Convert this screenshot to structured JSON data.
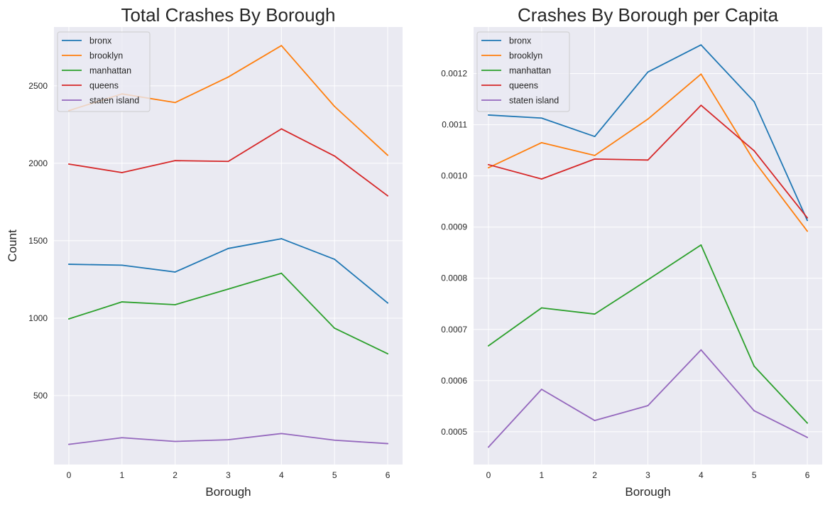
{
  "chart_data": [
    {
      "type": "line",
      "title": "Total Crashes By Borough",
      "xlabel": "Borough",
      "ylabel": "Count",
      "x": [
        0,
        1,
        2,
        3,
        4,
        5,
        6
      ],
      "xticks": [
        "0",
        "1",
        "2",
        "3",
        "4",
        "5",
        "6"
      ],
      "xlim": [
        -0.28,
        6.28
      ],
      "ylim": [
        55,
        2880
      ],
      "yticks": [
        500,
        1000,
        1500,
        2000,
        2500
      ],
      "yticklabels": [
        "500",
        "1000",
        "1500",
        "2000",
        "2500"
      ],
      "grid": true,
      "legend": "top-left",
      "series": [
        {
          "name": "bronx",
          "color": "#1f77b4",
          "values": [
            1348,
            1342,
            1298,
            1450,
            1513,
            1380,
            1098
          ]
        },
        {
          "name": "brooklyn",
          "color": "#ff7f0e",
          "values": [
            2340,
            2448,
            2392,
            2557,
            2760,
            2367,
            2052
          ]
        },
        {
          "name": "manhattan",
          "color": "#2ca02c",
          "values": [
            995,
            1105,
            1087,
            1188,
            1290,
            935,
            770
          ]
        },
        {
          "name": "queens",
          "color": "#d62728",
          "values": [
            1995,
            1940,
            2017,
            2012,
            2222,
            2047,
            1790
          ]
        },
        {
          "name": "staten island",
          "color": "#9467bd",
          "values": [
            185,
            228,
            204,
            215,
            255,
            212,
            190
          ]
        }
      ]
    },
    {
      "type": "line",
      "title": "Crashes By Borough per Capita",
      "xlabel": "Borough",
      "ylabel": "",
      "x": [
        0,
        1,
        2,
        3,
        4,
        5,
        6
      ],
      "xticks": [
        "0",
        "1",
        "2",
        "3",
        "4",
        "5",
        "6"
      ],
      "xlim": [
        -0.28,
        6.28
      ],
      "ylim": [
        0.000436,
        0.001291
      ],
      "yticks": [
        0.0005,
        0.0006,
        0.0007,
        0.0008,
        0.0009,
        0.001,
        0.0011,
        0.0012
      ],
      "yticklabels": [
        "0.0005",
        "0.0006",
        "0.0007",
        "0.0008",
        "0.0009",
        "0.0010",
        "0.0011",
        "0.0012"
      ],
      "grid": true,
      "legend": "top-left",
      "series": [
        {
          "name": "bronx",
          "color": "#1f77b4",
          "values": [
            0.001119,
            0.001113,
            0.001077,
            0.001203,
            0.001256,
            0.001145,
            0.000913
          ]
        },
        {
          "name": "brooklyn",
          "color": "#ff7f0e",
          "values": [
            0.001016,
            0.001065,
            0.00104,
            0.001111,
            0.001199,
            0.001029,
            0.000892
          ]
        },
        {
          "name": "manhattan",
          "color": "#2ca02c",
          "values": [
            0.000668,
            0.000742,
            0.00073,
            0.000797,
            0.000865,
            0.000628,
            0.000517
          ]
        },
        {
          "name": "queens",
          "color": "#d62728",
          "values": [
            0.001022,
            0.000994,
            0.001033,
            0.001031,
            0.001138,
            0.001049,
            0.000918
          ]
        },
        {
          "name": "staten island",
          "color": "#9467bd",
          "values": [
            0.00047,
            0.000583,
            0.000522,
            0.000551,
            0.00066,
            0.000541,
            0.000489
          ]
        }
      ]
    }
  ]
}
